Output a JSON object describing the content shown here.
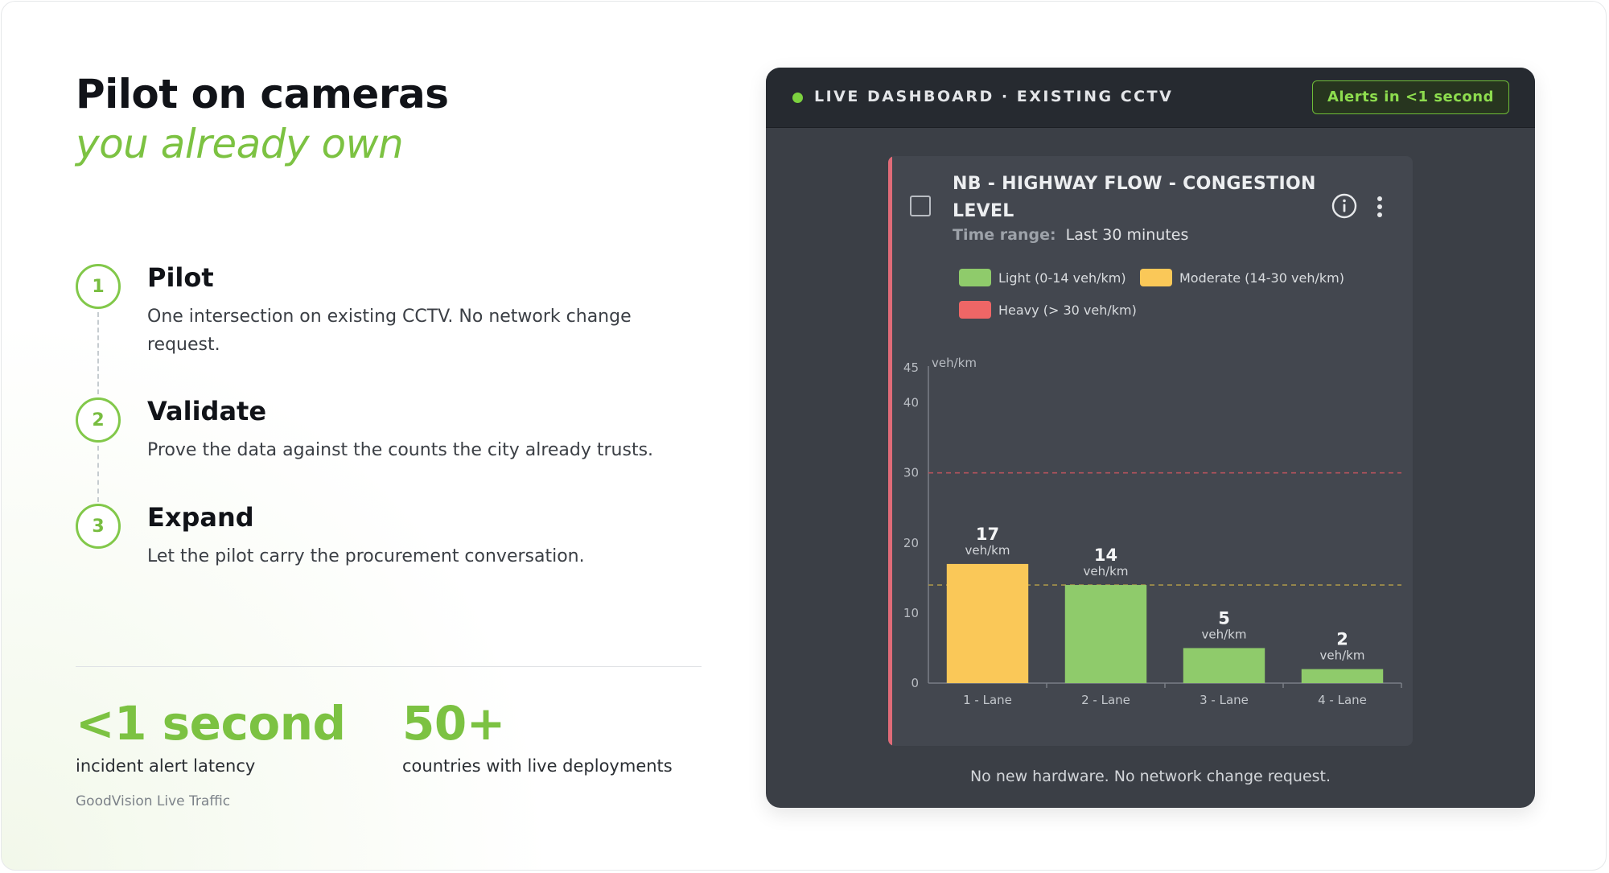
{
  "headline": {
    "line1": "Pilot on cameras",
    "line2": "you already own"
  },
  "steps": [
    {
      "number": "1",
      "title": "Pilot",
      "description": "One intersection on existing CCTV. No network change request."
    },
    {
      "number": "2",
      "title": "Validate",
      "description": "Prove the data against the counts the city already trusts."
    },
    {
      "number": "3",
      "title": "Expand",
      "description": "Let the pilot carry the procurement conversation."
    }
  ],
  "stats": [
    {
      "value": "<1 second",
      "label": "incident alert latency"
    },
    {
      "value": "50+",
      "label": "countries with live deployments"
    }
  ],
  "footer_brand": "GoodVision Live Traffic",
  "dashboard": {
    "header_title": "LIVE DASHBOARD · EXISTING CCTV",
    "alert_badge": "Alerts in <1 second",
    "panel": {
      "title": "NB - HIGHWAY FLOW - CONGESTION LEVEL",
      "time_range_label": "Time range:",
      "time_range_value": "Last 30 minutes",
      "legend": [
        {
          "label": "Light (0-14 veh/km)",
          "color": "#8fcb6b"
        },
        {
          "label": "Moderate (14-30 veh/km)",
          "color": "#fac858"
        },
        {
          "label": "Heavy (> 30 veh/km)",
          "color": "#ee6666"
        }
      ]
    },
    "footer_note": "No new hardware. No network change request."
  },
  "chart_data": {
    "type": "bar",
    "categories": [
      "1 - Lane",
      "2 - Lane",
      "3 - Lane",
      "4 - Lane"
    ],
    "values": [
      17,
      14,
      5,
      2
    ],
    "value_unit": "veh/km",
    "bar_colors": [
      "#fac858",
      "#8fcb6b",
      "#8fcb6b",
      "#8fcb6b"
    ],
    "ylabel": "veh/km",
    "ylim": [
      0,
      45
    ],
    "yticks": [
      0,
      10,
      20,
      30,
      40,
      45
    ],
    "threshold_lines": [
      {
        "value": 30,
        "color": "#b5535c"
      },
      {
        "value": 14,
        "color": "#a8944a"
      }
    ],
    "grid": false
  }
}
